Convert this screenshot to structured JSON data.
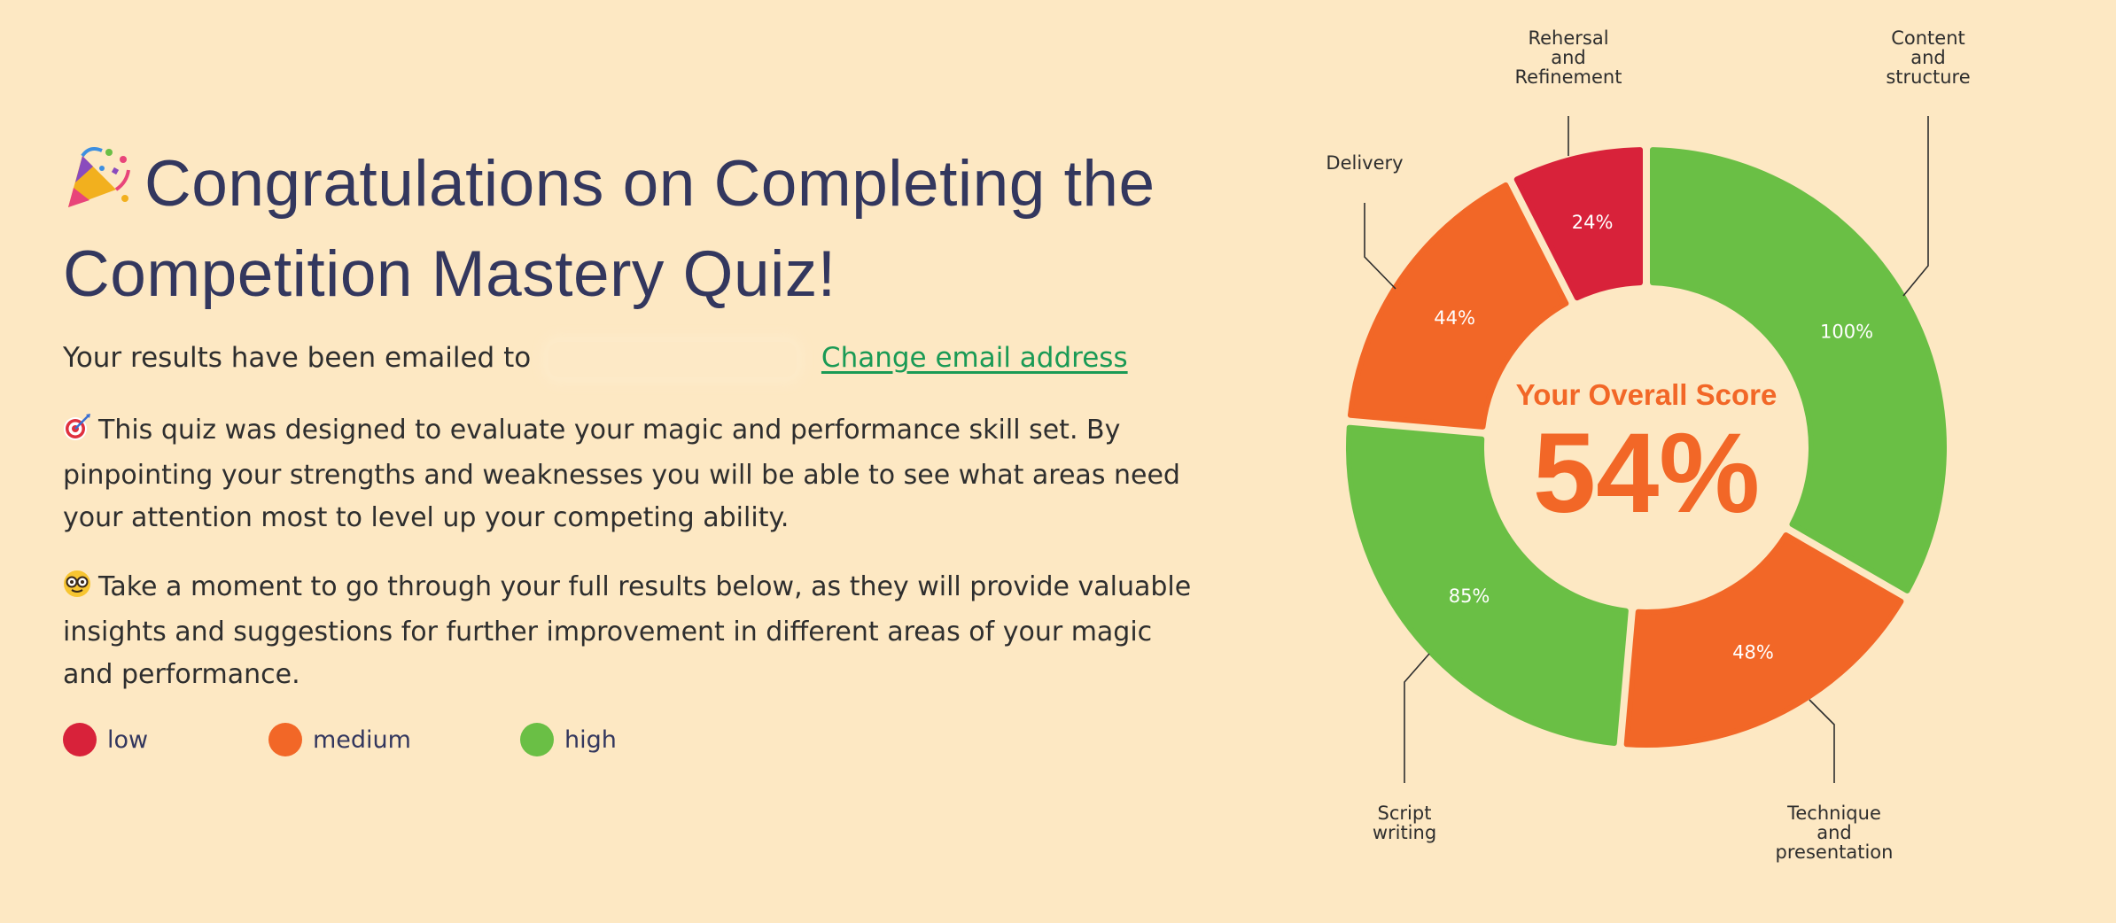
{
  "headline": {
    "emoji": "party-popper-icon",
    "line1": "Congratulations on Completing the",
    "line2": "Competition Mastery Quiz!"
  },
  "email": {
    "prefix": "Your results have been emailed to",
    "change_link": "Change email address"
  },
  "paragraphs": {
    "p1_icon": "dart-target-icon",
    "p1": "This quiz was designed to evaluate your magic and performance skill set.  By pinpointing your strengths and weaknesses you will be able to see what areas need your attention most to level up your competing ability.",
    "p2_icon": "nerd-face-icon",
    "p2": "Take a moment to go through your full results below, as they will provide valuable insights and suggestions for further improvement in different areas of your magic and performance."
  },
  "legend": {
    "items": [
      {
        "label": "low",
        "color": "#d8223a"
      },
      {
        "label": "medium",
        "color": "#f26727"
      },
      {
        "label": "high",
        "color": "#6abf45"
      }
    ]
  },
  "colors": {
    "background": "#fde8c3",
    "heading": "#33375e",
    "link": "#1a9a55",
    "low": "#d8223a",
    "medium": "#f26727",
    "high": "#6abf45"
  },
  "chart_data": {
    "type": "pie",
    "style": "donut",
    "center_title": "Your Overall Score",
    "center_value": "54%",
    "slices": [
      {
        "category": "Content and structure",
        "label_lines": [
          "Content",
          "and",
          "structure"
        ],
        "value": 100,
        "value_label": "100%",
        "level": "high"
      },
      {
        "category": "Technique and presentation",
        "label_lines": [
          "Technique",
          "and",
          "presentation"
        ],
        "value": 48,
        "value_label": "48%",
        "level": "medium"
      },
      {
        "category": "Script writing",
        "label_lines": [
          "Script",
          "writing"
        ],
        "value": 85,
        "value_label": "85%",
        "level": "high"
      },
      {
        "category": "Delivery",
        "label_lines": [
          "Delivery"
        ],
        "value": 44,
        "value_label": "44%",
        "level": "medium"
      },
      {
        "category": "Rehersal and Refinement",
        "label_lines": [
          "Rehersal",
          "and",
          "Refinement"
        ],
        "value": 24,
        "value_label": "24%",
        "level": "low"
      }
    ]
  }
}
